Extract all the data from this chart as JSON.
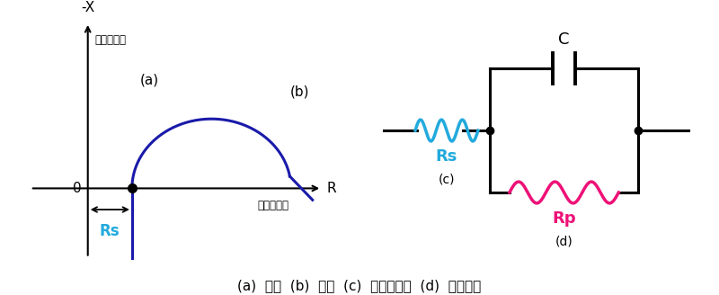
{
  "bg_color": "#ffffff",
  "title_text": "(a)  高频  (b)  低频  (c)  电解液电阵  (d)  反应电阵",
  "title_fontsize": 11,
  "left_panel": {
    "axis_color": "#000000",
    "curve_color": "#1a1aaa",
    "Rs_color": "#22aadd",
    "Rs_label": "Rs",
    "label_a": "(a)",
    "label_b": "(b)",
    "neg_x_label": "-X",
    "imag_label": "（虚数部）",
    "real_label": "（实数部）",
    "R_label": "R",
    "zero_label": "0"
  },
  "right_panel": {
    "wire_color": "#000000",
    "Rs_color": "#22aadd",
    "Rp_color": "#ee1177",
    "Rs_label": "Rs",
    "Rp_label": "Rp",
    "C_label": "C",
    "label_c": "(c)",
    "label_d": "(d)"
  }
}
